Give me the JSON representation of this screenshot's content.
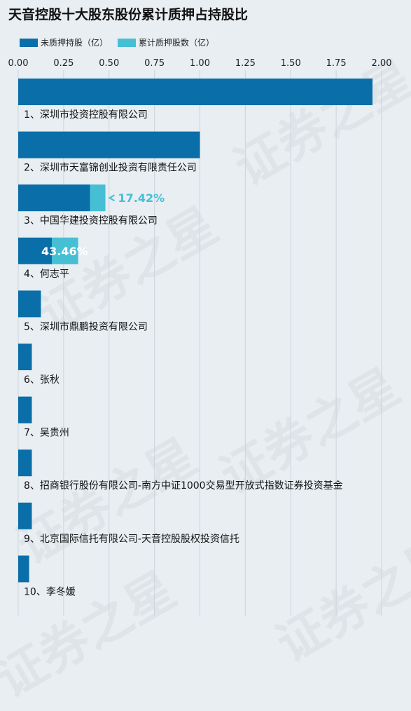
{
  "chart_data": {
    "type": "bar",
    "orientation": "horizontal",
    "stacked": true,
    "title": "天音控股十大股东股份累计质押占持股比",
    "xlim": [
      0,
      2.1
    ],
    "ticks": [
      "0.00",
      "0.25",
      "0.50",
      "0.75",
      "1.00",
      "1.25",
      "1.50",
      "1.75",
      "2.00"
    ],
    "tick_values": [
      0,
      0.25,
      0.5,
      0.75,
      1.0,
      1.25,
      1.5,
      1.75,
      2.0
    ],
    "grid": true,
    "legend_position": "top-left",
    "categories": [
      "1、深圳市投资控股有限公司",
      "2、深圳市天富锦创业投资有限责任公司",
      "3、中国华建投资控股有限公司",
      "4、何志平",
      "5、深圳市鼎鹏投资有限公司",
      "6、张秋",
      "7、吴贵州",
      "8、招商银行股份有限公司-南方中证1000交易型开放式指数证券投资基金",
      "9、北京国际信托有限公司-天音控股股权投资信托",
      "10、李冬媛"
    ],
    "series": [
      {
        "name": "未质押持股（亿）",
        "color": "#0a6ea8",
        "values": [
          1.95,
          1.0,
          0.395,
          0.185,
          0.125,
          0.075,
          0.075,
          0.075,
          0.075,
          0.06
        ]
      },
      {
        "name": "累计质押股数（亿）",
        "color": "#46bfd4",
        "values": [
          0,
          0,
          0.085,
          0.145,
          0,
          0,
          0,
          0,
          0,
          0
        ]
      }
    ],
    "annotations": [
      {
        "category_index": 2,
        "text": "17.42%",
        "style": "arrow-outside"
      },
      {
        "category_index": 3,
        "text": "43.46%",
        "style": "inside"
      }
    ]
  },
  "watermark": "证券之星"
}
